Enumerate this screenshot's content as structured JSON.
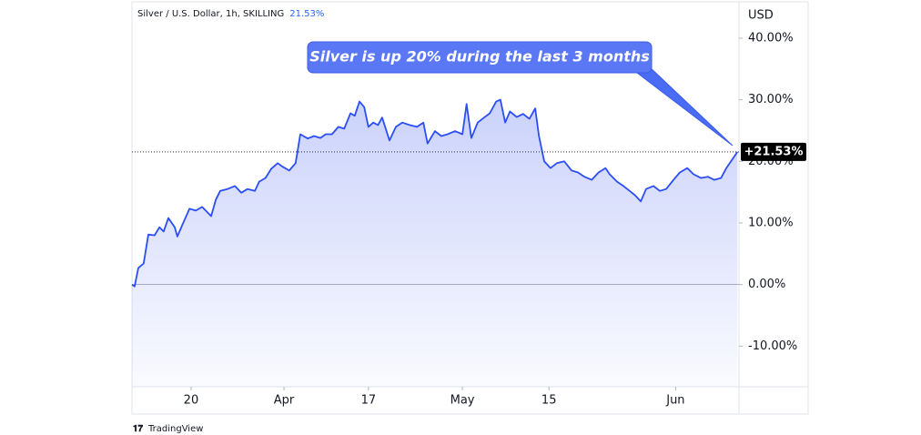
{
  "chart_data": {
    "type": "line",
    "title": "Silver / U.S. Dollar, 1h, SKILLING",
    "change_label": "21.53%",
    "currency": "USD",
    "annotation": "Silver is up 20% during the last 3 months",
    "last_value_label": "+21.53%",
    "source": "TradingView",
    "xlim": [
      0,
      115
    ],
    "xticks": [
      {
        "value": 11.2,
        "label": "20"
      },
      {
        "value": 28.8,
        "label": "Apr"
      },
      {
        "value": 44.8,
        "label": "17"
      },
      {
        "value": 62.6,
        "label": "May"
      },
      {
        "value": 79,
        "label": "15"
      },
      {
        "value": 103,
        "label": "Jun"
      }
    ],
    "ylim": [
      -16.6,
      45.9
    ],
    "yticks": [
      {
        "value": -10,
        "label": "-10.00%"
      },
      {
        "value": 0,
        "label": "0.00%"
      },
      {
        "value": 10,
        "label": "10.00%"
      },
      {
        "value": 20,
        "label": "20.00%"
      },
      {
        "value": 30,
        "label": "30.00%"
      },
      {
        "value": 40,
        "label": "40.00%"
      }
    ],
    "grid": false,
    "x": [
      0,
      0.5,
      1.2,
      2.2,
      3.1,
      4.3,
      5.2,
      6.0,
      6.9,
      8.1,
      8.6,
      9.5,
      10.9,
      12.1,
      13.3,
      15.0,
      15.9,
      16.7,
      18.1,
      19.5,
      20.7,
      21.9,
      23.3,
      24.1,
      25.3,
      26.4,
      27.6,
      28.4,
      29.8,
      31.0,
      31.9,
      33.3,
      34.5,
      35.7,
      36.7,
      37.9,
      39.1,
      40.2,
      41.4,
      42.2,
      43.1,
      44.0,
      44.8,
      45.7,
      46.6,
      47.4,
      48.8,
      50.0,
      51.2,
      52.6,
      54.0,
      55.2,
      56.0,
      57.4,
      58.6,
      59.8,
      61.2,
      62.6,
      63.4,
      64.3,
      65.5,
      66.7,
      67.8,
      69.0,
      69.8,
      70.7,
      71.6,
      72.9,
      74.1,
      75.3,
      76.4,
      77.1,
      78.1,
      79.3,
      80.5,
      81.9,
      83.3,
      84.5,
      85.7,
      87.1,
      88.4,
      89.7,
      90.5,
      91.9,
      93.1,
      94.3,
      95.3,
      96.4,
      97.4,
      98.8,
      100.0,
      101.2,
      102.6,
      103.8,
      105.2,
      106.4,
      107.8,
      109.1,
      110.3,
      111.6,
      112.6,
      113.8,
      114.7
    ],
    "series": [
      {
        "color": "#2b4ef5",
        "values": [
          0,
          -0.3,
          2.7,
          3.4,
          8.1,
          8,
          9.3,
          8.6,
          10.8,
          9.3,
          7.8,
          9.6,
          12.3,
          12,
          12.6,
          11.1,
          13.8,
          15.2,
          15.5,
          16,
          14.9,
          15.5,
          15.2,
          16.7,
          17.3,
          18.8,
          19.7,
          19.2,
          18.5,
          19.7,
          24.4,
          23.7,
          24.1,
          23.8,
          24.4,
          24.4,
          25.6,
          25.3,
          27.8,
          27.4,
          29.7,
          28.8,
          25.6,
          26.3,
          25.9,
          27.1,
          23.4,
          25.6,
          26.3,
          25.9,
          25.6,
          26.3,
          22.9,
          24.9,
          24.1,
          24.4,
          24.9,
          24.4,
          29.3,
          23.8,
          26.3,
          27.1,
          27.8,
          29.7,
          30,
          26.3,
          28.1,
          27.2,
          27.7,
          26.9,
          28.6,
          24.1,
          20,
          18.9,
          19.7,
          20,
          18.5,
          18.2,
          17.5,
          17,
          18.2,
          18.9,
          17.9,
          16.7,
          16,
          15.2,
          14.5,
          13.5,
          15.5,
          16,
          15.2,
          15.5,
          17,
          18.2,
          18.9,
          17.9,
          17.3,
          17.5,
          17,
          17.3,
          18.9,
          20.4,
          21.53
        ]
      }
    ]
  }
}
